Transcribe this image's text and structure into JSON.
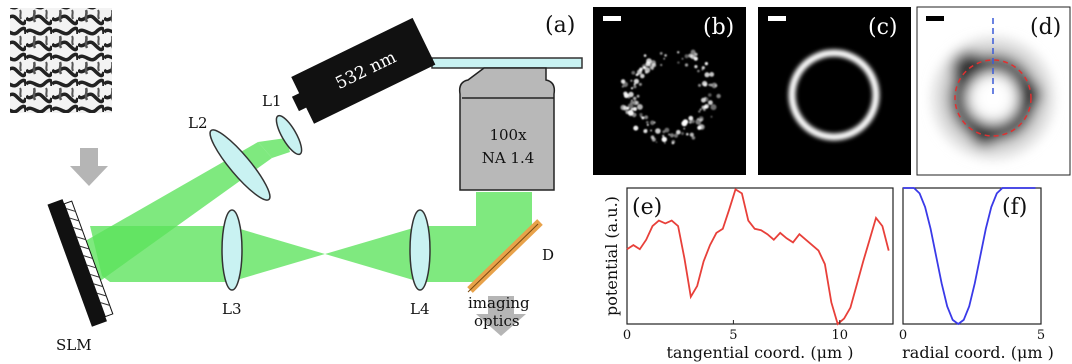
{
  "labels": {
    "panel_a": "(a)",
    "panel_b": "(b)",
    "panel_c": "(c)",
    "panel_d": "(d)",
    "panel_e": "(e)",
    "panel_f": "(f)",
    "laser": "532 nm",
    "objective_line1": "100x",
    "objective_line2": "NA 1.4",
    "l1": "L1",
    "l2": "L2",
    "l3": "L3",
    "l4": "L4",
    "slm": "SLM",
    "dichroic": "D",
    "imaging_line1": "imaging",
    "imaging_line2": "optics"
  },
  "colors": {
    "beam": "#5be35b",
    "lens": "#c9f2f2",
    "laser_body": "#111111",
    "objective": "#b8b8b8",
    "dichroic": "#e8a24a",
    "arrow": "#b5b5b5",
    "curve_e": "#e8403a",
    "curve_f": "#3a3ae8",
    "ring_marker": "#e03030",
    "cut_marker": "#3a5ad8"
  },
  "chart_data": [
    {
      "type": "line",
      "panel": "(e)",
      "xlabel": "tangential coord. (μm )",
      "ylabel": "potential (a.u.)",
      "xlim": [
        0,
        12.5
      ],
      "ylim": [
        0,
        1
      ],
      "xticks": [
        "0",
        "5",
        "10"
      ],
      "x": [
        0,
        0.3,
        0.6,
        0.9,
        1.2,
        1.5,
        1.8,
        2.1,
        2.4,
        2.7,
        3.0,
        3.3,
        3.6,
        3.9,
        4.2,
        4.5,
        4.8,
        5.1,
        5.4,
        5.7,
        6.0,
        6.3,
        6.6,
        6.9,
        7.2,
        7.5,
        7.8,
        8.1,
        8.4,
        8.7,
        9.0,
        9.3,
        9.6,
        9.9,
        10.2,
        10.5,
        10.8,
        11.1,
        11.4,
        11.7,
        12.0,
        12.3
      ],
      "series": [
        {
          "values": [
            0.55,
            0.58,
            0.55,
            0.62,
            0.72,
            0.76,
            0.74,
            0.76,
            0.72,
            0.48,
            0.2,
            0.28,
            0.46,
            0.58,
            0.67,
            0.7,
            0.84,
            0.99,
            0.96,
            0.76,
            0.7,
            0.69,
            0.66,
            0.62,
            0.67,
            0.63,
            0.6,
            0.66,
            0.62,
            0.58,
            0.54,
            0.44,
            0.16,
            0.0,
            0.04,
            0.12,
            0.29,
            0.46,
            0.62,
            0.78,
            0.72,
            0.54
          ]
        }
      ]
    },
    {
      "type": "line",
      "panel": "(f)",
      "xlabel": "radial coord. (μm )",
      "ylabel": "",
      "xlim": [
        0,
        5
      ],
      "ylim": [
        0,
        1
      ],
      "xticks": [
        "0",
        "5"
      ],
      "x": [
        0,
        0.2,
        0.4,
        0.6,
        0.8,
        1.0,
        1.2,
        1.4,
        1.6,
        1.8,
        2.0,
        2.2,
        2.4,
        2.6,
        2.8,
        3.0,
        3.2,
        3.4,
        3.6,
        3.8,
        4.0,
        4.2,
        4.4,
        4.6,
        4.8
      ],
      "series": [
        {
          "values": [
            1.0,
            1.0,
            1.0,
            0.96,
            0.86,
            0.7,
            0.5,
            0.3,
            0.13,
            0.03,
            0.0,
            0.03,
            0.13,
            0.3,
            0.5,
            0.7,
            0.86,
            0.96,
            1.0,
            1.0,
            1.0,
            1.0,
            1.0,
            1.0,
            1.0
          ]
        }
      ]
    }
  ]
}
